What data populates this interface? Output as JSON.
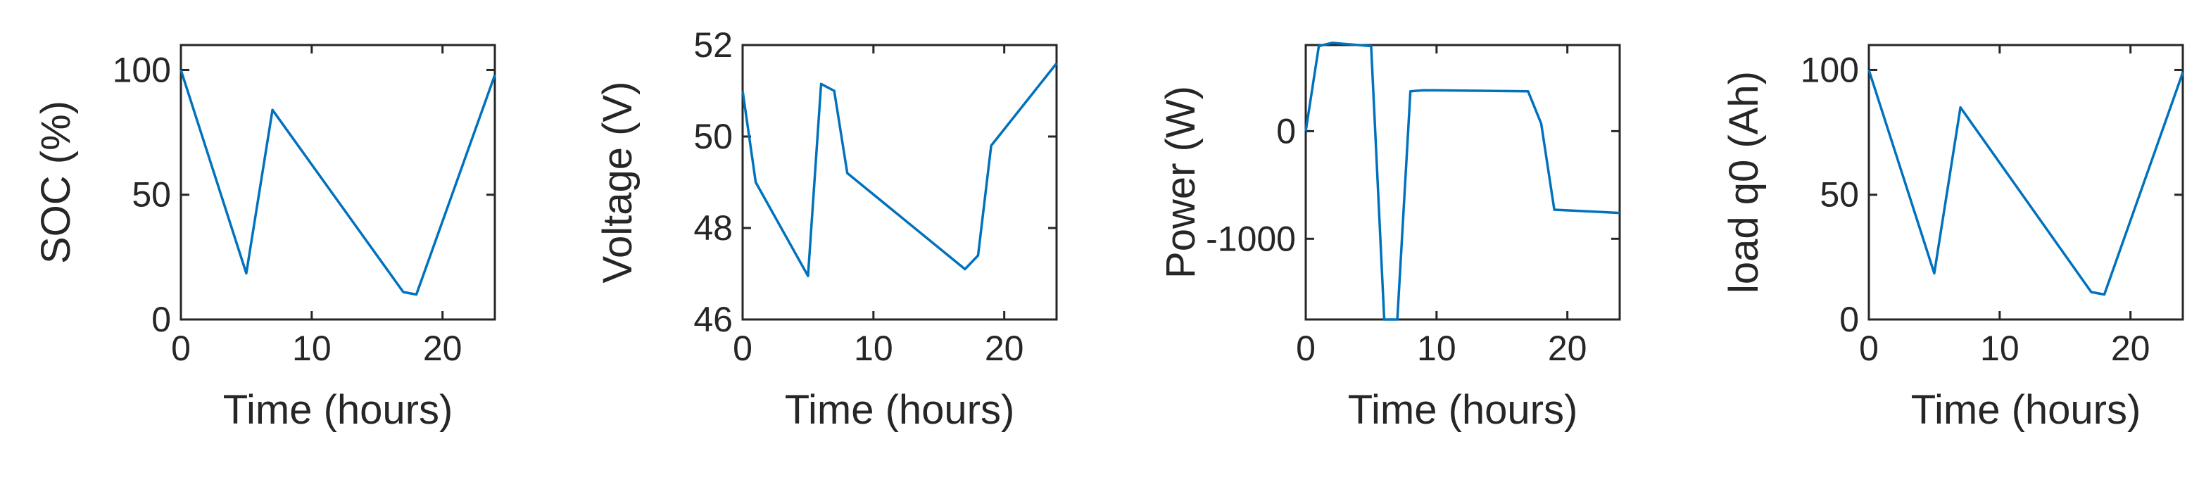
{
  "chart_data": [
    {
      "type": "line",
      "xlabel": "Time (hours)",
      "ylabel": "SOC (%)",
      "xlim": [
        0,
        24
      ],
      "ylim": [
        0,
        110
      ],
      "xticks": [
        0,
        10,
        20
      ],
      "yticks": [
        0,
        50,
        100
      ],
      "ytick_labels": [
        "0",
        "50",
        "100"
      ],
      "grid": false,
      "series": [
        {
          "color": "#0072BD",
          "x": [
            0,
            5,
            7,
            17,
            18,
            24
          ],
          "y": [
            100,
            18.5,
            84,
            11,
            10,
            98
          ]
        }
      ]
    },
    {
      "type": "line",
      "xlabel": "Time (hours)",
      "ylabel": "Voltage (V)",
      "xlim": [
        0,
        24
      ],
      "ylim": [
        46,
        52
      ],
      "xticks": [
        0,
        10,
        20
      ],
      "yticks": [
        46,
        48,
        50,
        52
      ],
      "ytick_labels": [
        "46",
        "48",
        "50",
        "52"
      ],
      "grid": false,
      "series": [
        {
          "color": "#0072BD",
          "x": [
            0,
            1,
            5,
            6,
            7,
            8,
            17,
            18,
            19,
            24
          ],
          "y": [
            51,
            49,
            46.95,
            51.15,
            51,
            49.2,
            47.1,
            47.4,
            49.8,
            51.6
          ]
        }
      ]
    },
    {
      "type": "line",
      "xlabel": "Time (hours)",
      "ylabel": "Power (W)",
      "xlim": [
        0,
        24
      ],
      "ylim": [
        -1750,
        800
      ],
      "xticks": [
        0,
        10,
        20
      ],
      "yticks": [
        -1000,
        0
      ],
      "ytick_labels": [
        "-1000",
        "0"
      ],
      "grid": false,
      "series": [
        {
          "color": "#0072BD",
          "x": [
            0,
            1,
            2,
            5,
            6,
            7,
            8,
            9,
            17,
            18,
            19,
            24
          ],
          "y": [
            0,
            790,
            820,
            790,
            -1750,
            -1750,
            370,
            380,
            370,
            70,
            -730,
            -760
          ]
        }
      ]
    },
    {
      "type": "line",
      "xlabel": "Time (hours)",
      "ylabel": "load q0 (Ah)",
      "xlim": [
        0,
        24
      ],
      "ylim": [
        0,
        110
      ],
      "xticks": [
        0,
        10,
        20
      ],
      "yticks": [
        0,
        50,
        100
      ],
      "ytick_labels": [
        "0",
        "50",
        "100"
      ],
      "grid": false,
      "series": [
        {
          "color": "#0072BD",
          "x": [
            0,
            5,
            7,
            17,
            18,
            24
          ],
          "y": [
            100,
            18.5,
            85,
            11,
            10,
            99
          ]
        }
      ]
    }
  ]
}
